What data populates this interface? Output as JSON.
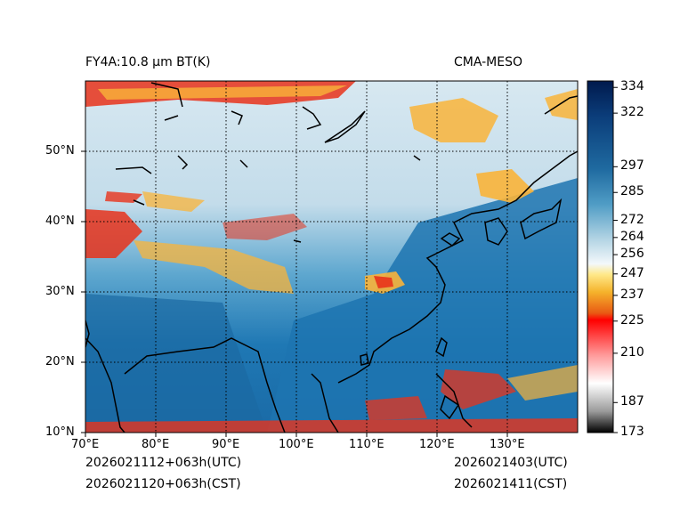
{
  "title_left": "FY4A:10.8 µm BT(K)",
  "title_right": "CMA-MESO",
  "y_ticks": [
    "50°N",
    "40°N",
    "30°N",
    "20°N",
    "10°N"
  ],
  "x_ticks": [
    "70°E",
    "80°E",
    "90°E",
    "100°E",
    "110°E",
    "120°E",
    "130°E"
  ],
  "footer": {
    "init_utc": "2026021112+063h(UTC)",
    "init_cst": "2026021120+063h(CST)",
    "valid_utc": "2026021403(UTC)",
    "valid_cst": "2026021411(CST)"
  },
  "colorbar_ticks": [
    "334",
    "322",
    "297",
    "285",
    "272",
    "264",
    "256",
    "247",
    "237",
    "225",
    "210",
    "187",
    "173"
  ],
  "colorbar_values": [
    334,
    322,
    297,
    285,
    272,
    264,
    256,
    247,
    237,
    225,
    210,
    187,
    173
  ],
  "colorbar_range": [
    173,
    337
  ],
  "colors": {
    "ocean": "#1f78b4",
    "land_cold": "#cfe3ee",
    "cloud_warm": "#f9b43a",
    "cloud_hot": "#e8331b"
  }
}
